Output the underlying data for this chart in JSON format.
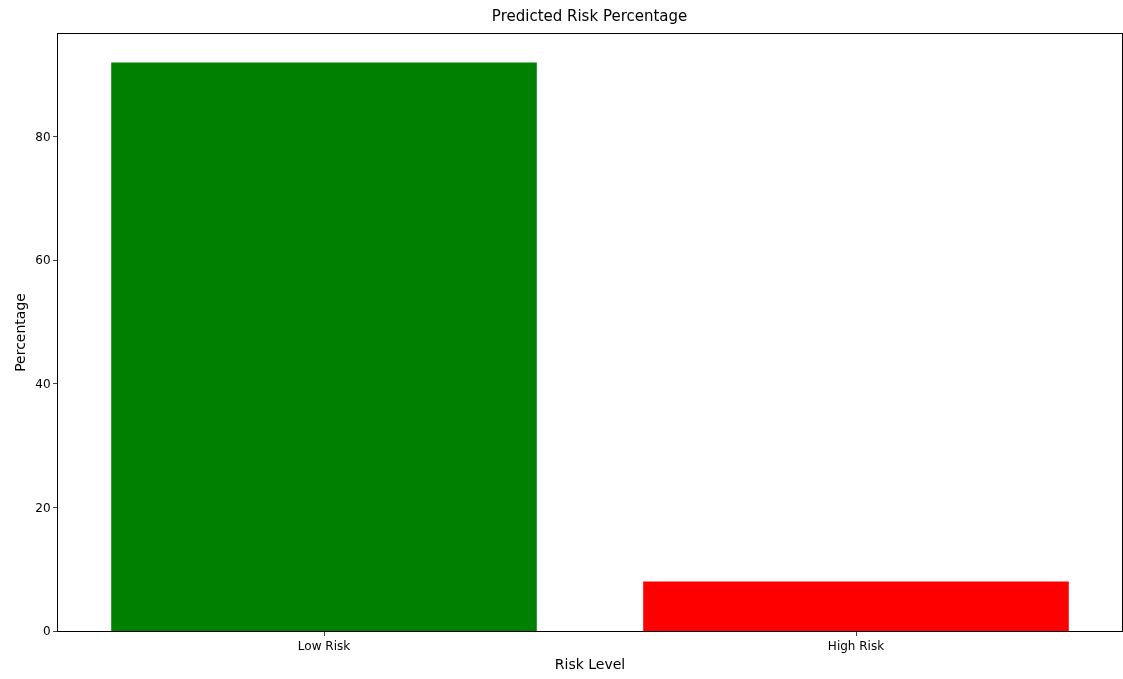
{
  "chart_data": {
    "type": "bar",
    "title": "Predicted Risk Percentage",
    "xlabel": "Risk Level",
    "ylabel": "Percentage",
    "categories": [
      "Low Risk",
      "High Risk"
    ],
    "values": [
      92,
      8
    ],
    "colors": [
      "#008000",
      "#ff0000"
    ],
    "ylim": [
      0,
      96.6
    ],
    "yticks": [
      0,
      20,
      40,
      60,
      80
    ]
  }
}
